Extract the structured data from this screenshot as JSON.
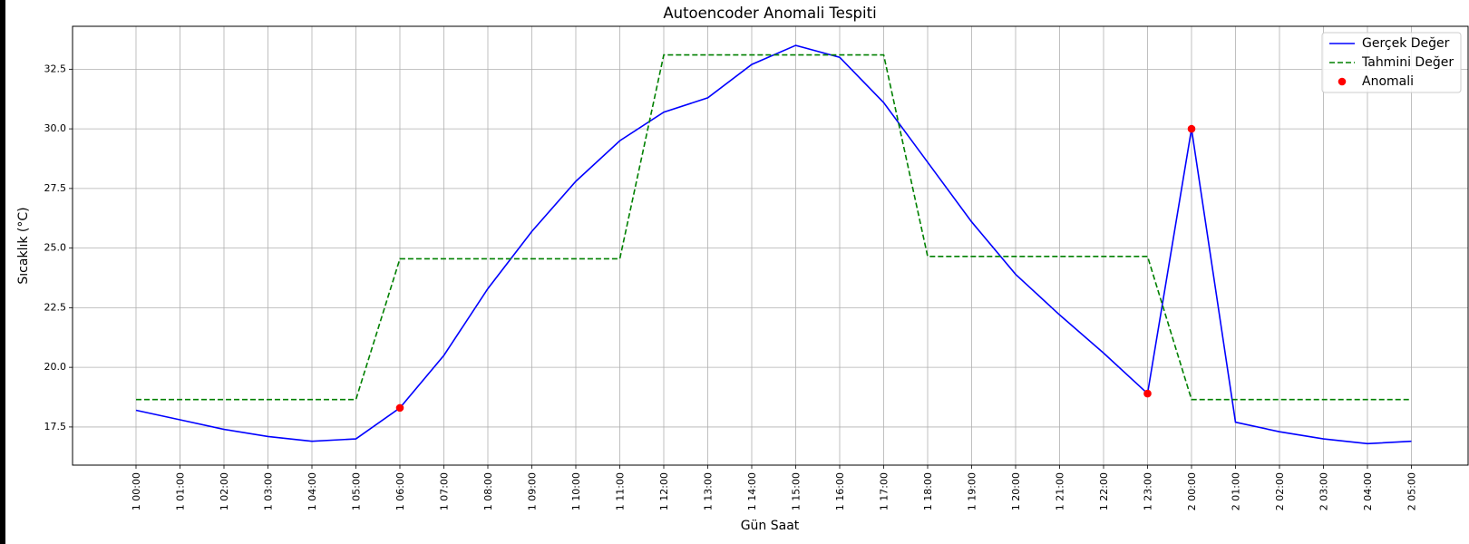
{
  "chart_data": {
    "type": "line",
    "title": "Autoencoder Anomali Tespiti",
    "xlabel": "Gün Saat",
    "ylabel": "Sıcaklık (°C)",
    "ylim": [
      15.9,
      34.3
    ],
    "yticks": [
      17.5,
      20.0,
      22.5,
      25.0,
      27.5,
      30.0,
      32.5
    ],
    "ytick_labels": [
      "17.5",
      "20.0",
      "22.5",
      "25.0",
      "27.5",
      "30.0",
      "32.5"
    ],
    "grid": true,
    "legend_position": "top-right",
    "categories": [
      "1 00:00",
      "1 01:00",
      "1 02:00",
      "1 03:00",
      "1 04:00",
      "1 05:00",
      "1 06:00",
      "1 07:00",
      "1 08:00",
      "1 09:00",
      "1 10:00",
      "1 11:00",
      "1 12:00",
      "1 13:00",
      "1 14:00",
      "1 15:00",
      "1 16:00",
      "1 17:00",
      "1 18:00",
      "1 19:00",
      "1 20:00",
      "1 21:00",
      "1 22:00",
      "1 23:00",
      "2 00:00",
      "2 01:00",
      "2 02:00",
      "2 03:00",
      "2 04:00",
      "2 05:00"
    ],
    "series": [
      {
        "name": "Gerçek Değer",
        "kind": "line",
        "color": "#0000ff",
        "style": "solid",
        "values": [
          18.2,
          17.8,
          17.4,
          17.1,
          16.9,
          17.0,
          18.3,
          20.5,
          23.3,
          25.7,
          27.8,
          29.5,
          30.7,
          31.3,
          32.7,
          33.5,
          33.0,
          31.1,
          28.6,
          26.1,
          23.9,
          22.2,
          20.6,
          18.9,
          30.0,
          17.7,
          17.3,
          17.0,
          16.8,
          16.9
        ]
      },
      {
        "name": "Tahmini Değer",
        "kind": "line",
        "color": "#008000",
        "style": "dashed",
        "values": [
          18.65,
          18.65,
          18.65,
          18.65,
          18.65,
          18.65,
          24.55,
          24.55,
          24.55,
          24.55,
          24.55,
          24.55,
          33.1,
          33.1,
          33.1,
          33.1,
          33.1,
          33.1,
          24.65,
          24.65,
          24.65,
          24.65,
          24.65,
          24.65,
          18.65,
          18.65,
          18.65,
          18.65,
          18.65,
          18.65
        ]
      },
      {
        "name": "Anomali",
        "kind": "scatter",
        "color": "#ff0000",
        "points": [
          {
            "x": "1 06:00",
            "y": 18.3
          },
          {
            "x": "1 23:00",
            "y": 18.9
          },
          {
            "x": "2 00:00",
            "y": 30.0
          }
        ]
      }
    ]
  }
}
